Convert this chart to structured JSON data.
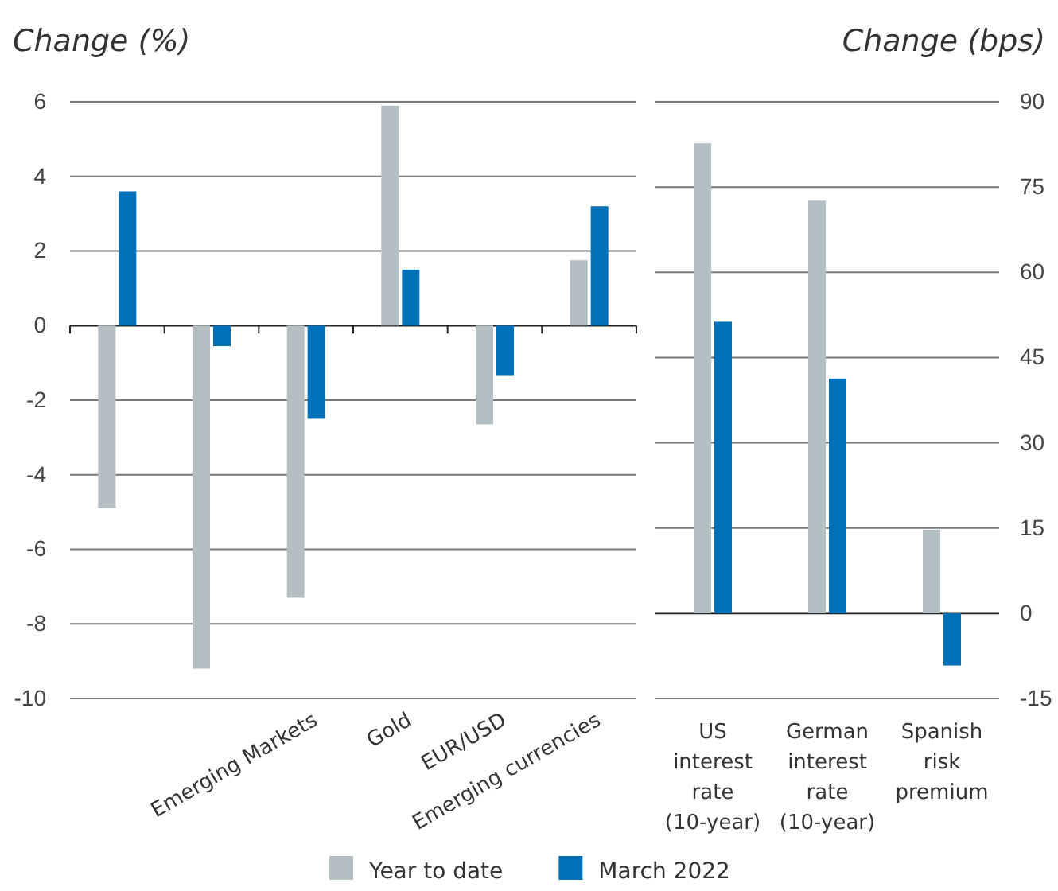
{
  "chart_data": [
    {
      "type": "bar",
      "ylabel": "Change (%)",
      "categories": [
        null,
        null,
        "Emerging Markets",
        "Gold",
        "EUR/USD",
        "Emerging currencies"
      ],
      "series": [
        {
          "name": "Year to date",
          "color": "#b4bfc3",
          "values": [
            -4.9,
            -9.2,
            -7.3,
            5.9,
            -2.65,
            1.75
          ]
        },
        {
          "name": "March 2022",
          "color": "#0071b9",
          "values": [
            3.6,
            -0.55,
            -2.5,
            1.5,
            -1.35,
            3.2
          ]
        }
      ],
      "ylim": [
        -10,
        6
      ],
      "yticks": [
        -10,
        -8,
        -6,
        -4,
        -2,
        0,
        2,
        4,
        6
      ],
      "grid": "y",
      "legend": "bottom"
    },
    {
      "type": "bar",
      "ylabel": "Change (bps)",
      "categories": [
        "US interest rate (10-year)",
        "German interest rate (10-year)",
        "Spanish risk premium"
      ],
      "series": [
        {
          "color": "#b4bfc3",
          "values": [
            82.7,
            72.6,
            14.7
          ]
        },
        {
          "color": "#0071b9",
          "values": [
            51.3,
            41.3,
            -9.2
          ]
        }
      ],
      "ylim": [
        -15,
        90
      ],
      "yticks": [
        -15,
        0,
        15,
        30,
        45,
        60,
        75,
        90
      ],
      "grid": "y"
    }
  ]
}
